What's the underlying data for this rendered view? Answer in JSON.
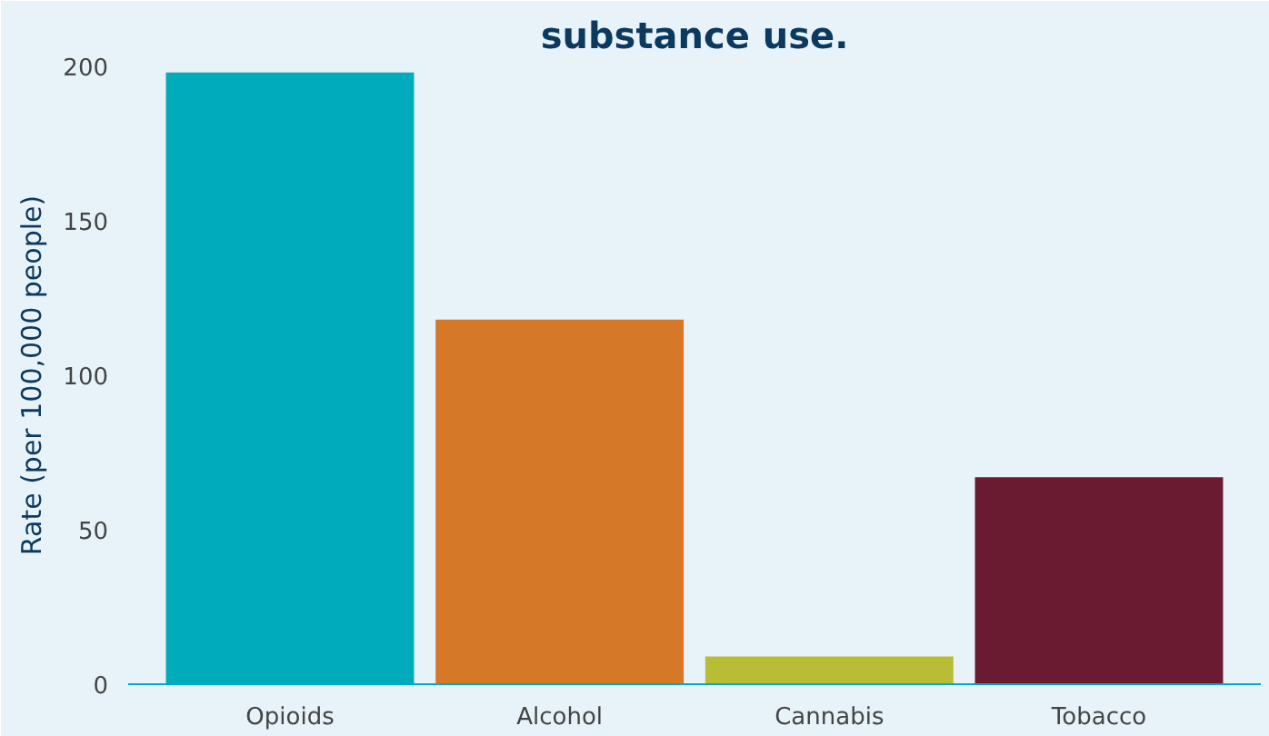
{
  "chart_data": {
    "type": "bar",
    "title": "substance use.",
    "ylabel": "Rate (per 100,000 people)",
    "categories": [
      "Opioids",
      "Alcohol",
      "Cannabis",
      "Tobacco"
    ],
    "values": [
      198,
      118,
      9,
      67
    ],
    "colors": [
      "#00acbc",
      "#d57828",
      "#b8bd35",
      "#6a1b31"
    ],
    "ylim": [
      0,
      200
    ],
    "yticks": [
      0,
      50,
      100,
      150,
      200
    ],
    "grid": false
  }
}
